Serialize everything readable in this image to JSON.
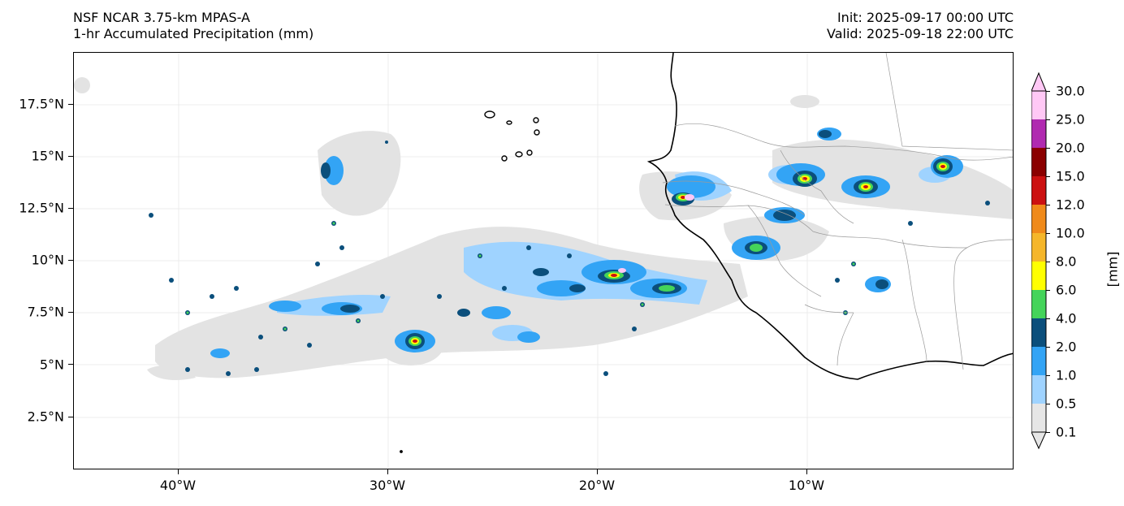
{
  "header": {
    "model": "NSF NCAR 3.75-km MPAS-A",
    "field": "1-hr Accumulated Precipitation (mm)",
    "init": "Init: 2025-09-17 00:00 UTC",
    "valid": "Valid: 2025-09-18 22:00 UTC"
  },
  "map": {
    "lat_labels": [
      "17.5°N",
      "15°N",
      "12.5°N",
      "10°N",
      "7.5°N",
      "5°N",
      "2.5°N"
    ],
    "lon_labels": [
      "40°W",
      "30°W",
      "20°W",
      "10°W"
    ]
  },
  "colorbar": {
    "unit": "[mm]",
    "levels": [
      "0.1",
      "0.5",
      "1.0",
      "2.0",
      "4.0",
      "6.0",
      "8.0",
      "10.0",
      "12.0",
      "15.0",
      "20.0",
      "25.0",
      "30.0"
    ],
    "colors": [
      "#e6e6e6",
      "#9fd3ff",
      "#33a4f5",
      "#0b4f7c",
      "#44d45a",
      "#ffff00",
      "#f5b62a",
      "#f08a1a",
      "#cc1111",
      "#8b0000",
      "#b02ab0",
      "#ffc8f5"
    ]
  }
}
